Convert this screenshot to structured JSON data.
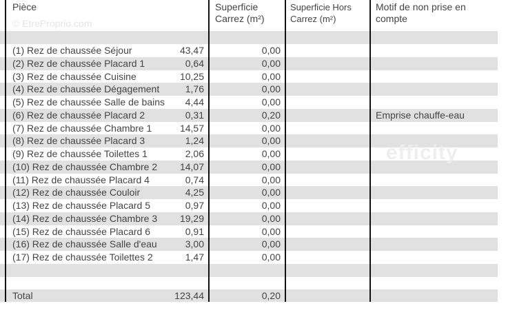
{
  "watermark": "© EtreProprio.com",
  "watermark_center": "efficity",
  "headers": [
    "Pièce",
    "Superficie Carrez (m²)",
    "Superficie Hors Carrez (m²)",
    "Motif de non prise en compte"
  ],
  "rows": [
    {
      "piece": "(1) Rez de chaussée Séjour",
      "carrez": "43,47",
      "hors": "0,00",
      "motif": ""
    },
    {
      "piece": "(2) Rez de chaussée Placard 1",
      "carrez": "0,64",
      "hors": "0,00",
      "motif": ""
    },
    {
      "piece": "(3) Rez de chaussée Cuisine",
      "carrez": "10,25",
      "hors": "0,00",
      "motif": ""
    },
    {
      "piece": "(4) Rez de chaussée Dégagement",
      "carrez": "1,76",
      "hors": "0,00",
      "motif": ""
    },
    {
      "piece": "(5) Rez de chaussée Salle de bains",
      "carrez": "4,44",
      "hors": "0,00",
      "motif": ""
    },
    {
      "piece": "(6) Rez de chaussée Placard 2",
      "carrez": "0,31",
      "hors": "0,20",
      "motif": "Emprise chauffe-eau"
    },
    {
      "piece": "(7) Rez de chaussée Chambre 1",
      "carrez": "14,57",
      "hors": "0,00",
      "motif": ""
    },
    {
      "piece": "(8) Rez de chaussée Placard 3",
      "carrez": "1,24",
      "hors": "0,00",
      "motif": ""
    },
    {
      "piece": "(9) Rez de chaussée Toilettes 1",
      "carrez": "2,06",
      "hors": "0,00",
      "motif": ""
    },
    {
      "piece": "(10) Rez de chaussée Chambre 2",
      "carrez": "14,07",
      "hors": "0,00",
      "motif": ""
    },
    {
      "piece": "(11) Rez de chaussée Placard 4",
      "carrez": "0,74",
      "hors": "0,00",
      "motif": ""
    },
    {
      "piece": "(12) Rez de chaussée Couloir",
      "carrez": "4,25",
      "hors": "0,00",
      "motif": ""
    },
    {
      "piece": "(13) Rez de chaussée Placard 5",
      "carrez": "0,97",
      "hors": "0,00",
      "motif": ""
    },
    {
      "piece": "(14) Rez de chaussée Chambre 3",
      "carrez": "19,29",
      "hors": "0,00",
      "motif": ""
    },
    {
      "piece": "(15) Rez de chaussée Placard 6",
      "carrez": "0,91",
      "hors": "0,00",
      "motif": ""
    },
    {
      "piece": "(16) Rez de chaussée Salle d'eau",
      "carrez": "3,00",
      "hors": "0,00",
      "motif": ""
    },
    {
      "piece": "(17) Rez de chaussée Toilettes 2",
      "carrez": "1,47",
      "hors": "0,00",
      "motif": ""
    }
  ],
  "total": {
    "label": "Total",
    "carrez": "123,44",
    "hors": "0,20"
  }
}
